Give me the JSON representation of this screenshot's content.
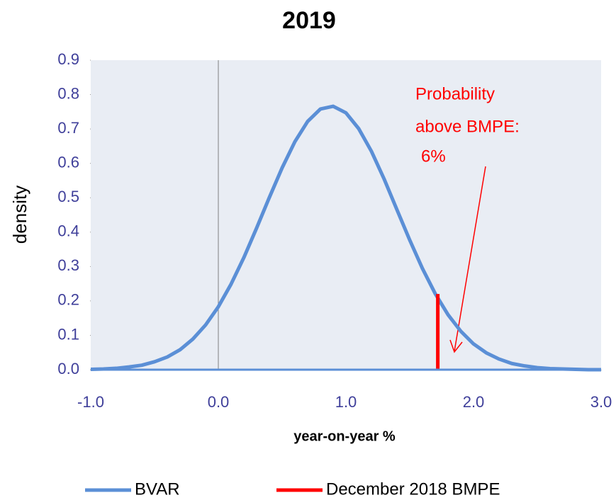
{
  "chart_data": {
    "type": "line",
    "title": "2019",
    "xlabel": "year-on-year %",
    "ylabel": "density",
    "annotation": [
      "Probability",
      "above BMPE:",
      "6%"
    ],
    "xlim": [
      -1.0,
      3.0
    ],
    "xticks": [
      {
        "value": -1.0,
        "label": "-1.0"
      },
      {
        "value": 0,
        "label": "0.0"
      },
      {
        "value": 1,
        "label": "1.0"
      },
      {
        "value": 2,
        "label": "2.0"
      },
      {
        "value": 3,
        "label": "3.0"
      }
    ],
    "ylim": [
      0,
      0.9
    ],
    "yticks": [
      {
        "value": 0,
        "label": "0.0"
      },
      0.1,
      0.2,
      0.3,
      0.4,
      0.5,
      0.6,
      0.7,
      0.8,
      0.9
    ],
    "grid": false,
    "legend": "bottom",
    "series": [
      {
        "name": "BVAR",
        "color": "#5b8fd6",
        "x": [
          -1.0,
          -0.9,
          -0.8,
          -0.7,
          -0.6,
          -0.5,
          -0.4,
          -0.3,
          -0.2,
          -0.1,
          0.0,
          0.1,
          0.2,
          0.3,
          0.4,
          0.5,
          0.6,
          0.7,
          0.8,
          0.9,
          1.0,
          1.1,
          1.2,
          1.3,
          1.4,
          1.5,
          1.6,
          1.7,
          1.8,
          1.9,
          2.0,
          2.1,
          2.2,
          2.3,
          2.4,
          2.5,
          2.6,
          2.7,
          2.8,
          2.9,
          3.0
        ],
        "values": [
          0.001,
          0.002,
          0.004,
          0.008,
          0.013,
          0.023,
          0.037,
          0.058,
          0.089,
          0.13,
          0.183,
          0.249,
          0.326,
          0.412,
          0.501,
          0.587,
          0.663,
          0.722,
          0.758,
          0.766,
          0.747,
          0.701,
          0.635,
          0.554,
          0.465,
          0.377,
          0.294,
          0.221,
          0.16,
          0.112,
          0.075,
          0.049,
          0.031,
          0.018,
          0.011,
          0.006,
          0.003,
          0.002,
          0.001,
          0.0,
          0.0
        ]
      },
      {
        "name": "December 2018 BMPE",
        "color": "#ff0000",
        "x": [
          1.72,
          1.72
        ],
        "values": [
          0,
          0.22
        ]
      }
    ]
  }
}
